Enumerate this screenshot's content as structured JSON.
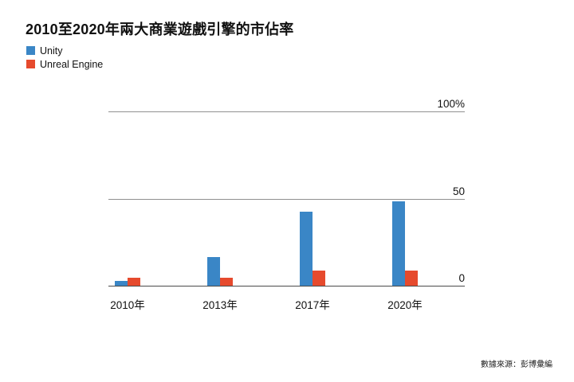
{
  "chart_data": {
    "type": "bar",
    "title": "2010至2020年兩大商業遊戲引擎的市佔率",
    "categories": [
      "2010年",
      "2013年",
      "2017年",
      "2020年"
    ],
    "series": [
      {
        "name": "Unity",
        "color": "#3a86c6",
        "values": [
          3,
          17,
          43,
          49
        ]
      },
      {
        "name": "Unreal Engine",
        "color": "#e64a2d",
        "values": [
          5,
          5,
          9,
          9
        ]
      }
    ],
    "xlabel": "",
    "ylabel": "",
    "unit": "%",
    "ylim": [
      0,
      100
    ],
    "yticks": [
      {
        "value": 100,
        "label": "100%"
      },
      {
        "value": 50,
        "label": "50"
      },
      {
        "value": 0,
        "label": "0"
      }
    ],
    "grid": "horizontal",
    "legend_position": "top-left",
    "source": "數據來源：彭博彙編"
  },
  "colors": {
    "unity_blue": "#3a86c6",
    "unreal_red": "#e64a2d",
    "gridline": "#909090",
    "axis": "#4a4a4a",
    "text": "#111111"
  }
}
